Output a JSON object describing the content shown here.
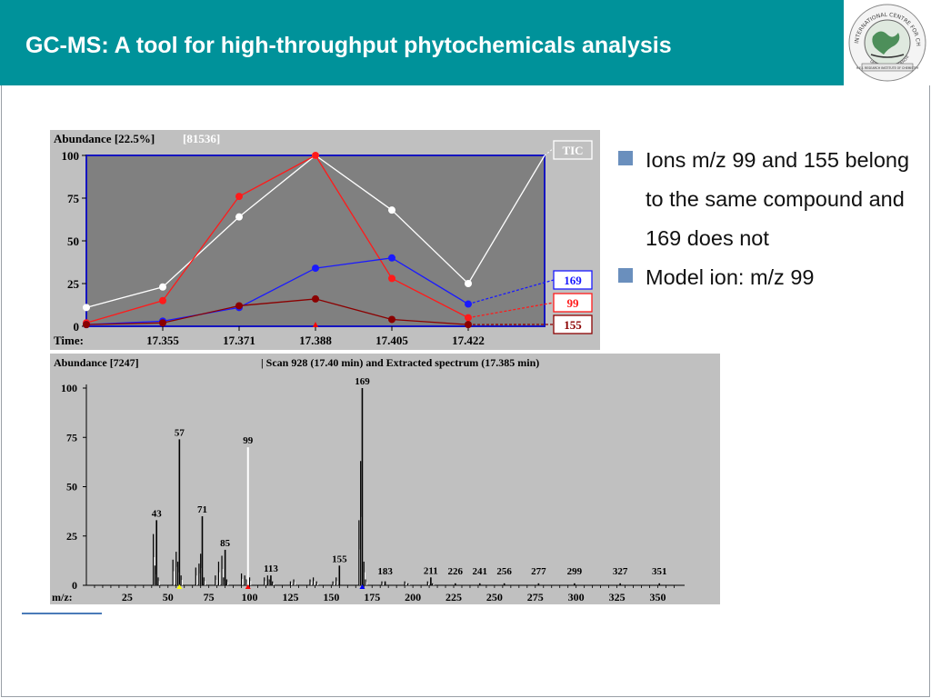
{
  "slide": {
    "title": "GC-MS: A tool for high-throughput phytochemicals analysis",
    "logo": {
      "top_text": "INTERNATIONAL CENTRE FOR CHEMICAL SCIENCES",
      "bottom_text": "UNIVERSITY OF KARACHI",
      "ribbon_text": "H.E.J. RESEARCH INSTITUTE OF CHEMISTRY"
    },
    "bullets": [
      "Ions m/z 99 and 155 belong to the same compound and 169 does not",
      "Model ion: m/z 99"
    ],
    "colors": {
      "header": "#00929a",
      "bullet": "#6a8fbd"
    }
  },
  "chart_data": [
    {
      "type": "line",
      "header_label": "Abundance [22.5%]",
      "header_value": "[81536]",
      "xlabel": "Time:",
      "x_ticks": [
        "17.355",
        "17.371",
        "17.388",
        "17.405",
        "17.422"
      ],
      "ylim": [
        0,
        100
      ],
      "y_ticks": [
        "0",
        "25",
        "50",
        "75",
        "100"
      ],
      "series": [
        {
          "name": "TIC",
          "color": "#ffffff",
          "values": [
            11,
            23,
            64,
            100,
            68,
            25
          ],
          "extension": [
            100
          ]
        },
        {
          "name": "99",
          "color": "#ff1a1a",
          "values": [
            2,
            15,
            76,
            100,
            28,
            5
          ],
          "extension": [
            9
          ]
        },
        {
          "name": "169",
          "color": "#1a1aff",
          "values": [
            1,
            3,
            11,
            34,
            40,
            13
          ],
          "extension": [
            15
          ]
        },
        {
          "name": "155",
          "color": "#8b0000",
          "values": [
            1,
            2,
            12,
            16,
            4,
            1
          ],
          "extension": [
            3
          ]
        }
      ]
    },
    {
      "type": "bar",
      "header_label": "Abundance [7247]",
      "header_text": "| Scan 928 (17.40 min) and  Extracted spectrum (17.385 min)",
      "xlabel": "m/z:",
      "x_ticks": [
        "25",
        "50",
        "75",
        "100",
        "125",
        "150",
        "175",
        "200",
        "225",
        "250",
        "275",
        "300",
        "325",
        "350"
      ],
      "xlim": [
        0,
        362
      ],
      "ylim": [
        0,
        100
      ],
      "y_ticks": [
        "0",
        "25",
        "50",
        "75",
        "100"
      ],
      "peaks": [
        {
          "mz": 43,
          "value": 33,
          "label": "43"
        },
        {
          "mz": 57,
          "value": 74,
          "label": "57"
        },
        {
          "mz": 71,
          "value": 35,
          "label": "71"
        },
        {
          "mz": 85,
          "value": 18,
          "label": "85"
        },
        {
          "mz": 99,
          "value": 70,
          "label": "99"
        },
        {
          "mz": 113,
          "value": 5,
          "label": "113"
        },
        {
          "mz": 155,
          "value": 10,
          "label": "155"
        },
        {
          "mz": 169,
          "value": 100,
          "label": "169"
        },
        {
          "mz": 183,
          "value": 2,
          "label": "183"
        },
        {
          "mz": 211,
          "value": 4,
          "label": "211"
        },
        {
          "mz": 226,
          "value": 1,
          "label": "226"
        },
        {
          "mz": 241,
          "value": 1,
          "label": "241"
        },
        {
          "mz": 256,
          "value": 1,
          "label": "256"
        },
        {
          "mz": 277,
          "value": 1,
          "label": "277"
        },
        {
          "mz": 299,
          "value": 1,
          "label": "299"
        },
        {
          "mz": 327,
          "value": 1,
          "label": "327"
        },
        {
          "mz": 351,
          "value": 1,
          "label": "351"
        }
      ],
      "minor_peaks": [
        [
          41,
          26
        ],
        [
          42,
          10
        ],
        [
          44,
          4
        ],
        [
          53,
          13
        ],
        [
          55,
          17
        ],
        [
          56,
          12
        ],
        [
          58,
          5
        ],
        [
          67,
          9
        ],
        [
          69,
          11
        ],
        [
          70,
          16
        ],
        [
          72,
          4
        ],
        [
          79,
          5
        ],
        [
          81,
          12
        ],
        [
          83,
          15
        ],
        [
          84,
          4
        ],
        [
          86,
          3
        ],
        [
          95,
          6
        ],
        [
          97,
          5
        ],
        [
          98,
          3
        ],
        [
          100,
          4
        ],
        [
          109,
          4
        ],
        [
          111,
          5
        ],
        [
          112,
          3
        ],
        [
          114,
          2
        ],
        [
          125,
          2
        ],
        [
          127,
          3
        ],
        [
          137,
          3
        ],
        [
          139,
          4
        ],
        [
          141,
          2
        ],
        [
          151,
          2
        ],
        [
          153,
          4
        ],
        [
          167,
          33
        ],
        [
          168,
          63
        ],
        [
          170,
          12
        ],
        [
          171,
          3
        ],
        [
          181,
          2
        ],
        [
          195,
          2
        ],
        [
          197,
          1
        ],
        [
          209,
          2
        ],
        [
          212,
          1
        ]
      ],
      "markers": [
        {
          "mz": 57,
          "color": "#ffff00"
        },
        {
          "mz": 99,
          "color": "#ff0000"
        },
        {
          "mz": 169,
          "color": "#0000ff"
        }
      ]
    }
  ]
}
